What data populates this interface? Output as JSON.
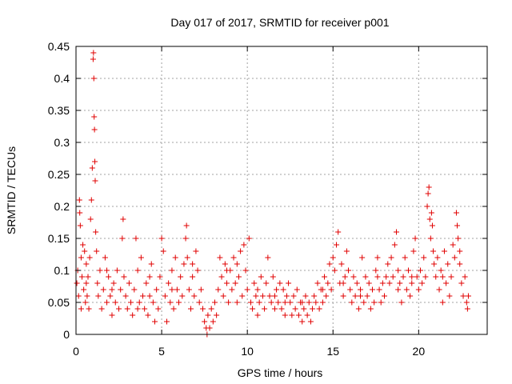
{
  "chart_data": {
    "type": "scatter",
    "title": "Day 017 of 2017, SRMTID for receiver p001",
    "xlabel": "GPS time / hours",
    "ylabel": "SRMTID / TECUs",
    "xlim": [
      0,
      24
    ],
    "ylim": [
      0,
      0.45
    ],
    "xticks": [
      0,
      5,
      10,
      15,
      20
    ],
    "xtick_labels": [
      "0",
      "5",
      "10",
      "15",
      "20"
    ],
    "yticks": [
      0,
      0.05,
      0.1,
      0.15,
      0.2,
      0.25,
      0.3,
      0.35,
      0.4,
      0.45
    ],
    "ytick_labels": [
      "0",
      "0.05",
      "0.1",
      "0.15",
      "0.2",
      "0.25",
      "0.3",
      "0.35",
      "0.4",
      "0.45"
    ],
    "grid": true,
    "marker": "+",
    "marker_color": "#e00000",
    "series": [
      {
        "name": "SRMTID",
        "points": [
          [
            0.05,
            0.08
          ],
          [
            0.1,
            0.1
          ],
          [
            0.15,
            0.06
          ],
          [
            0.2,
            0.21
          ],
          [
            0.22,
            0.19
          ],
          [
            0.25,
            0.17
          ],
          [
            0.3,
            0.12
          ],
          [
            0.35,
            0.09
          ],
          [
            0.4,
            0.14
          ],
          [
            0.45,
            0.07
          ],
          [
            0.5,
            0.13
          ],
          [
            0.55,
            0.05
          ],
          [
            0.6,
            0.11
          ],
          [
            0.65,
            0.06
          ],
          [
            0.7,
            0.09
          ],
          [
            0.75,
            0.04
          ],
          [
            0.8,
            0.12
          ],
          [
            0.85,
            0.18
          ],
          [
            0.9,
            0.21
          ],
          [
            0.95,
            0.26
          ],
          [
            1.0,
            0.43
          ],
          [
            1.02,
            0.44
          ],
          [
            1.04,
            0.4
          ],
          [
            1.06,
            0.34
          ],
          [
            1.08,
            0.32
          ],
          [
            1.1,
            0.27
          ],
          [
            1.12,
            0.24
          ],
          [
            1.15,
            0.16
          ],
          [
            1.2,
            0.13
          ],
          [
            1.25,
            0.08
          ],
          [
            1.3,
            0.06
          ],
          [
            1.4,
            0.1
          ],
          [
            1.5,
            0.04
          ],
          [
            1.6,
            0.07
          ],
          [
            1.7,
            0.12
          ],
          [
            1.8,
            0.05
          ],
          [
            1.9,
            0.09
          ],
          [
            2.0,
            0.06
          ],
          [
            2.1,
            0.03
          ],
          [
            2.2,
            0.08
          ],
          [
            2.3,
            0.05
          ],
          [
            2.4,
            0.1
          ],
          [
            2.5,
            0.04
          ],
          [
            2.6,
            0.07
          ],
          [
            2.7,
            0.15
          ],
          [
            2.75,
            0.18
          ],
          [
            2.8,
            0.09
          ],
          [
            2.9,
            0.06
          ],
          [
            3.0,
            0.04
          ],
          [
            3.1,
            0.08
          ],
          [
            3.2,
            0.05
          ],
          [
            3.3,
            0.03
          ],
          [
            3.4,
            0.07
          ],
          [
            3.5,
            0.15
          ],
          [
            3.6,
            0.1
          ],
          [
            3.7,
            0.05
          ],
          [
            3.8,
            0.12
          ],
          [
            3.9,
            0.06
          ],
          [
            4.0,
            0.04
          ],
          [
            4.1,
            0.08
          ],
          [
            4.2,
            0.03
          ],
          [
            4.3,
            0.06
          ],
          [
            4.4,
            0.11
          ],
          [
            4.5,
            0.05
          ],
          [
            4.6,
            0.02
          ],
          [
            4.7,
            0.07
          ],
          [
            4.8,
            0.04
          ],
          [
            4.9,
            0.09
          ],
          [
            5.0,
            0.15
          ],
          [
            5.1,
            0.13
          ],
          [
            5.2,
            0.06
          ],
          [
            5.3,
            0.02
          ],
          [
            5.4,
            0.08
          ],
          [
            5.5,
            0.05
          ],
          [
            5.6,
            0.1
          ],
          [
            5.7,
            0.04
          ],
          [
            5.8,
            0.12
          ],
          [
            5.9,
            0.07
          ],
          [
            6.0,
            0.05
          ],
          [
            6.1,
            0.09
          ],
          [
            6.2,
            0.06
          ],
          [
            6.3,
            0.11
          ],
          [
            6.4,
            0.15
          ],
          [
            6.45,
            0.17
          ],
          [
            6.5,
            0.12
          ],
          [
            6.6,
            0.07
          ],
          [
            6.7,
            0.04
          ],
          [
            6.8,
            0.09
          ],
          [
            6.9,
            0.06
          ],
          [
            7.0,
            0.13
          ],
          [
            7.1,
            0.1
          ],
          [
            7.2,
            0.05
          ],
          [
            7.3,
            0.07
          ],
          [
            7.4,
            0.04
          ],
          [
            7.5,
            0.02
          ],
          [
            7.6,
            0.01
          ],
          [
            7.65,
            0.0
          ],
          [
            7.7,
            0.03
          ],
          [
            7.8,
            0.01
          ],
          [
            7.9,
            0.04
          ],
          [
            8.0,
            0.02
          ],
          [
            8.1,
            0.05
          ],
          [
            8.2,
            0.03
          ],
          [
            8.3,
            0.07
          ],
          [
            8.4,
            0.12
          ],
          [
            8.5,
            0.09
          ],
          [
            8.6,
            0.06
          ],
          [
            8.7,
            0.11
          ],
          [
            8.8,
            0.08
          ],
          [
            8.9,
            0.05
          ],
          [
            9.0,
            0.1
          ],
          [
            9.1,
            0.07
          ],
          [
            9.2,
            0.12
          ],
          [
            9.3,
            0.08
          ],
          [
            9.4,
            0.05
          ],
          [
            9.5,
            0.09
          ],
          [
            9.6,
            0.13
          ],
          [
            9.7,
            0.06
          ],
          [
            9.8,
            0.14
          ],
          [
            9.9,
            0.1
          ],
          [
            10.0,
            0.07
          ],
          [
            10.1,
            0.15
          ],
          [
            10.2,
            0.05
          ],
          [
            10.3,
            0.04
          ],
          [
            10.4,
            0.08
          ],
          [
            10.5,
            0.06
          ],
          [
            10.6,
            0.03
          ],
          [
            10.7,
            0.05
          ],
          [
            10.8,
            0.09
          ],
          [
            10.9,
            0.06
          ],
          [
            11.0,
            0.04
          ],
          [
            11.1,
            0.08
          ],
          [
            11.2,
            0.12
          ],
          [
            11.3,
            0.06
          ],
          [
            11.4,
            0.05
          ],
          [
            11.5,
            0.09
          ],
          [
            11.6,
            0.04
          ],
          [
            11.7,
            0.07
          ],
          [
            11.8,
            0.05
          ],
          [
            11.9,
            0.08
          ],
          [
            12.0,
            0.04
          ],
          [
            12.1,
            0.07
          ],
          [
            12.2,
            0.03
          ],
          [
            12.3,
            0.06
          ],
          [
            12.4,
            0.08
          ],
          [
            12.5,
            0.05
          ],
          [
            12.6,
            0.03
          ],
          [
            12.7,
            0.06
          ],
          [
            12.8,
            0.04
          ],
          [
            12.9,
            0.07
          ],
          [
            13.0,
            0.03
          ],
          [
            13.1,
            0.05
          ],
          [
            13.2,
            0.02
          ],
          [
            13.3,
            0.04
          ],
          [
            13.4,
            0.06
          ],
          [
            13.5,
            0.03
          ],
          [
            13.6,
            0.05
          ],
          [
            13.7,
            0.02
          ],
          [
            13.8,
            0.04
          ],
          [
            13.9,
            0.06
          ],
          [
            14.0,
            0.05
          ],
          [
            14.1,
            0.08
          ],
          [
            14.2,
            0.04
          ],
          [
            14.3,
            0.07
          ],
          [
            14.4,
            0.05
          ],
          [
            14.5,
            0.09
          ],
          [
            14.6,
            0.06
          ],
          [
            14.7,
            0.08
          ],
          [
            14.8,
            0.11
          ],
          [
            14.9,
            0.07
          ],
          [
            15.0,
            0.12
          ],
          [
            15.1,
            0.1
          ],
          [
            15.2,
            0.14
          ],
          [
            15.3,
            0.16
          ],
          [
            15.4,
            0.08
          ],
          [
            15.5,
            0.11
          ],
          [
            15.6,
            0.06
          ],
          [
            15.7,
            0.09
          ],
          [
            15.8,
            0.13
          ],
          [
            15.9,
            0.1
          ],
          [
            16.0,
            0.07
          ],
          [
            16.1,
            0.05
          ],
          [
            16.2,
            0.09
          ],
          [
            16.3,
            0.06
          ],
          [
            16.4,
            0.08
          ],
          [
            16.5,
            0.04
          ],
          [
            16.6,
            0.07
          ],
          [
            16.7,
            0.12
          ],
          [
            16.8,
            0.05
          ],
          [
            16.9,
            0.09
          ],
          [
            17.0,
            0.06
          ],
          [
            17.1,
            0.08
          ],
          [
            17.2,
            0.04
          ],
          [
            17.3,
            0.07
          ],
          [
            17.4,
            0.05
          ],
          [
            17.5,
            0.1
          ],
          [
            17.6,
            0.12
          ],
          [
            17.7,
            0.07
          ],
          [
            17.8,
            0.05
          ],
          [
            17.9,
            0.08
          ],
          [
            18.0,
            0.06
          ],
          [
            18.1,
            0.09
          ],
          [
            18.2,
            0.11
          ],
          [
            18.3,
            0.08
          ],
          [
            18.4,
            0.12
          ],
          [
            18.5,
            0.09
          ],
          [
            18.6,
            0.14
          ],
          [
            18.7,
            0.16
          ],
          [
            18.8,
            0.1
          ],
          [
            18.9,
            0.08
          ],
          [
            19.0,
            0.05
          ],
          [
            19.1,
            0.09
          ],
          [
            19.2,
            0.12
          ],
          [
            19.3,
            0.07
          ],
          [
            19.4,
            0.1
          ],
          [
            19.5,
            0.06
          ],
          [
            19.6,
            0.09
          ],
          [
            19.7,
            0.13
          ],
          [
            19.8,
            0.15
          ],
          [
            19.9,
            0.09
          ],
          [
            20.0,
            0.07
          ],
          [
            20.1,
            0.1
          ],
          [
            20.2,
            0.08
          ],
          [
            20.3,
            0.12
          ],
          [
            20.4,
            0.09
          ],
          [
            20.5,
            0.2
          ],
          [
            20.55,
            0.22
          ],
          [
            20.6,
            0.23
          ],
          [
            20.65,
            0.18
          ],
          [
            20.7,
            0.15
          ],
          [
            20.75,
            0.19
          ],
          [
            20.8,
            0.17
          ],
          [
            20.85,
            0.13
          ],
          [
            20.9,
            0.11
          ],
          [
            21.0,
            0.09
          ],
          [
            21.1,
            0.12
          ],
          [
            21.2,
            0.07
          ],
          [
            21.3,
            0.1
          ],
          [
            21.4,
            0.05
          ],
          [
            21.5,
            0.13
          ],
          [
            21.6,
            0.08
          ],
          [
            21.7,
            0.11
          ],
          [
            21.8,
            0.06
          ],
          [
            21.9,
            0.09
          ],
          [
            22.0,
            0.14
          ],
          [
            22.1,
            0.12
          ],
          [
            22.2,
            0.19
          ],
          [
            22.25,
            0.17
          ],
          [
            22.3,
            0.15
          ],
          [
            22.4,
            0.11
          ],
          [
            22.5,
            0.08
          ],
          [
            22.6,
            0.06
          ],
          [
            22.7,
            0.09
          ],
          [
            22.8,
            0.05
          ],
          [
            22.85,
            0.04
          ],
          [
            22.9,
            0.06
          ],
          [
            0.3,
            0.04
          ],
          [
            0.6,
            0.08
          ],
          [
            1.8,
            0.1
          ],
          [
            2.1,
            0.07
          ],
          [
            3.6,
            0.04
          ],
          [
            4.3,
            0.09
          ],
          [
            5.6,
            0.07
          ],
          [
            6.8,
            0.11
          ],
          [
            8.8,
            0.1
          ],
          [
            9.4,
            0.11
          ],
          [
            10.6,
            0.07
          ],
          [
            11.6,
            0.06
          ],
          [
            12.2,
            0.05
          ],
          [
            13.2,
            0.05
          ],
          [
            14.4,
            0.07
          ],
          [
            15.6,
            0.08
          ],
          [
            16.6,
            0.06
          ],
          [
            17.6,
            0.09
          ],
          [
            18.8,
            0.07
          ],
          [
            19.6,
            0.08
          ],
          [
            21.4,
            0.09
          ],
          [
            22.4,
            0.13
          ]
        ]
      }
    ]
  }
}
